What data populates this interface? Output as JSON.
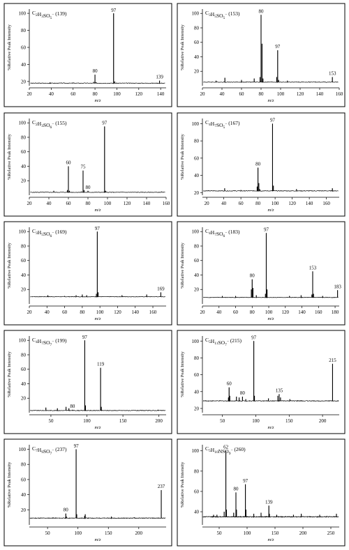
{
  "chart_data": [
    {
      "type": "line",
      "title": "C2H3SO5 (139)",
      "formula": [
        [
          "C",
          ""
        ],
        [
          "2",
          "sub"
        ],
        [
          "H",
          ""
        ],
        [
          "3",
          "sub"
        ],
        [
          "SO",
          ""
        ],
        [
          "5",
          "sub"
        ],
        [
          "−",
          "sup"
        ]
      ],
      "mass": "(139)",
      "ylabel": "%Relative Peak Intensity",
      "xlabel": "m/z",
      "xlim": [
        20,
        145
      ],
      "ylim": [
        15,
        105
      ],
      "xticks": [
        20,
        40,
        60,
        80,
        100,
        120,
        140
      ],
      "yticks": [
        20,
        40,
        60,
        80,
        100
      ],
      "baseline": 18,
      "peaks": [
        [
          39,
          19
        ],
        [
          60,
          18.8
        ],
        [
          79,
          19.5
        ],
        [
          80,
          28
        ],
        [
          81,
          19
        ],
        [
          97,
          100
        ],
        [
          98,
          20
        ],
        [
          139,
          21
        ]
      ],
      "labels": [
        {
          "x": 80,
          "text": "80"
        },
        {
          "x": 97,
          "text": "97"
        },
        {
          "x": 139,
          "text": "139"
        }
      ]
    },
    {
      "type": "line",
      "title": "C3H5SO5 (153)",
      "formula": [
        [
          "C",
          ""
        ],
        [
          "3",
          "sub"
        ],
        [
          "H",
          ""
        ],
        [
          "5",
          "sub"
        ],
        [
          "SO",
          ""
        ],
        [
          "5",
          "sub"
        ],
        [
          "−",
          "sup"
        ]
      ],
      "mass": "(153)",
      "ylabel": "%Relative Peak Intensity",
      "xlabel": "m/z",
      "xlim": [
        20,
        160
      ],
      "ylim": [
        0,
        106
      ],
      "xticks": [
        20,
        40,
        60,
        80,
        100,
        120,
        140,
        160
      ],
      "yticks": [
        20,
        40,
        60,
        80,
        100
      ],
      "baseline": 5,
      "peaks": [
        [
          34,
          7
        ],
        [
          43,
          11
        ],
        [
          60,
          8
        ],
        [
          73,
          10
        ],
        [
          79,
          12
        ],
        [
          80,
          98
        ],
        [
          81,
          58
        ],
        [
          82,
          10
        ],
        [
          96,
          12
        ],
        [
          97,
          49
        ],
        [
          98,
          8
        ],
        [
          107,
          7
        ],
        [
          153,
          12
        ]
      ],
      "labels": [
        {
          "x": 80,
          "text": "80"
        },
        {
          "x": 97,
          "text": "97"
        },
        {
          "x": 153,
          "text": "153"
        }
      ]
    },
    {
      "type": "line",
      "title": "C2H3SO6 (155)",
      "formula": [
        [
          "C",
          ""
        ],
        [
          "2",
          "sub"
        ],
        [
          "H",
          ""
        ],
        [
          "3",
          "sub"
        ],
        [
          "SO",
          ""
        ],
        [
          "6",
          "sub"
        ],
        [
          "−",
          "sup"
        ]
      ],
      "mass": "(155)",
      "ylabel": "%Relative Peak Intensity",
      "xlabel": "m/z",
      "xlim": [
        20,
        160
      ],
      "ylim": [
        0,
        106
      ],
      "xticks": [
        20,
        40,
        60,
        80,
        100,
        120,
        140,
        160
      ],
      "yticks": [
        20,
        40,
        60,
        80,
        100
      ],
      "baseline": 4,
      "peaks": [
        [
          45,
          6
        ],
        [
          59,
          7
        ],
        [
          60,
          40
        ],
        [
          61,
          6
        ],
        [
          73,
          5
        ],
        [
          75,
          34
        ],
        [
          76,
          7
        ],
        [
          80,
          6
        ],
        [
          97,
          95
        ],
        [
          98,
          6
        ],
        [
          155,
          5
        ]
      ],
      "labels": [
        {
          "x": 60,
          "text": "60"
        },
        {
          "x": 75,
          "text": "75"
        },
        {
          "x": 80,
          "text": "80"
        },
        {
          "x": 97,
          "text": "97"
        }
      ]
    },
    {
      "type": "line",
      "title": "C4H7SO5 (167)",
      "formula": [
        [
          "C",
          ""
        ],
        [
          "4",
          "sub"
        ],
        [
          "H",
          ""
        ],
        [
          "7",
          "sub"
        ],
        [
          "SO",
          ""
        ],
        [
          "5",
          "sub"
        ],
        [
          "−",
          "sup"
        ]
      ],
      "mass": "(167)",
      "ylabel": "%Relative Peak Intensity",
      "xlabel": "m/z",
      "xlim": [
        15,
        175
      ],
      "ylim": [
        17,
        106
      ],
      "xticks": [
        20,
        40,
        60,
        80,
        100,
        120,
        140,
        160
      ],
      "yticks": [
        20,
        40,
        60,
        80,
        100
      ],
      "baseline": 22,
      "peaks": [
        [
          41,
          25
        ],
        [
          60,
          23
        ],
        [
          79,
          27
        ],
        [
          80,
          49
        ],
        [
          81,
          31
        ],
        [
          82,
          24
        ],
        [
          97,
          100
        ],
        [
          98,
          28
        ],
        [
          125,
          24
        ],
        [
          167,
          25
        ]
      ],
      "labels": [
        {
          "x": 80,
          "text": "80"
        },
        {
          "x": 97,
          "text": "97"
        }
      ]
    },
    {
      "type": "line",
      "title": "C3H5SO6 (169)",
      "formula": [
        [
          "C",
          ""
        ],
        [
          "3",
          "sub"
        ],
        [
          "H",
          ""
        ],
        [
          "5",
          "sub"
        ],
        [
          "SO",
          ""
        ],
        [
          "6",
          "sub"
        ],
        [
          "−",
          "sup"
        ]
      ],
      "mass": "(169)",
      "ylabel": "%Relative Peak Intensity",
      "xlabel": "m/z",
      "xlim": [
        20,
        175
      ],
      "ylim": [
        0,
        106
      ],
      "xticks": [
        20,
        40,
        60,
        80,
        100,
        120,
        140,
        160
      ],
      "yticks": [
        20,
        40,
        60,
        80,
        100
      ],
      "baseline": 10,
      "peaks": [
        [
          41,
          12
        ],
        [
          60,
          11
        ],
        [
          73,
          12
        ],
        [
          80,
          13
        ],
        [
          85,
          12
        ],
        [
          96,
          14
        ],
        [
          97,
          100
        ],
        [
          98,
          16
        ],
        [
          125,
          12
        ],
        [
          153,
          13
        ],
        [
          169,
          16
        ]
      ],
      "labels": [
        {
          "x": 97,
          "text": "97"
        },
        {
          "x": 169,
          "text": "169"
        }
      ]
    },
    {
      "type": "line",
      "title": "C4H7SO6 (183)",
      "formula": [
        [
          "C",
          ""
        ],
        [
          "4",
          "sub"
        ],
        [
          "H",
          ""
        ],
        [
          "7",
          "sub"
        ],
        [
          "SO",
          ""
        ],
        [
          "6",
          "sub"
        ],
        [
          "−",
          "sup"
        ]
      ],
      "mass": "(183)",
      "ylabel": "%Relative Peak Intensity",
      "xlabel": "m/z",
      "xlim": [
        20,
        185
      ],
      "ylim": [
        0,
        106
      ],
      "xticks": [
        20,
        40,
        60,
        80,
        100,
        120,
        140,
        160,
        180
      ],
      "yticks": [
        20,
        40,
        60,
        80,
        100
      ],
      "baseline": 9,
      "peaks": [
        [
          44,
          11
        ],
        [
          60,
          11
        ],
        [
          79,
          20
        ],
        [
          80,
          34
        ],
        [
          81,
          22
        ],
        [
          85,
          12
        ],
        [
          96,
          14
        ],
        [
          97,
          98
        ],
        [
          98,
          20
        ],
        [
          125,
          11
        ],
        [
          139,
          12
        ],
        [
          152,
          13
        ],
        [
          153,
          45
        ],
        [
          154,
          14
        ],
        [
          165,
          11
        ],
        [
          183,
          19
        ]
      ],
      "labels": [
        {
          "x": 80,
          "text": "80"
        },
        {
          "x": 97,
          "text": "97"
        },
        {
          "x": 153,
          "text": "153"
        },
        {
          "x": 183,
          "text": "183"
        }
      ]
    },
    {
      "type": "line",
      "title": "C4H7SO7 (199)",
      "formula": [
        [
          "C",
          ""
        ],
        [
          "4",
          "sub"
        ],
        [
          "H",
          ""
        ],
        [
          "7",
          "sub"
        ],
        [
          "SO",
          ""
        ],
        [
          "7",
          "sub"
        ],
        [
          "−",
          "sup"
        ]
      ],
      "mass": "(199)",
      "ylabel": "%Relative Peak Intensity",
      "xlabel": "m/z",
      "xlim": [
        20,
        210
      ],
      "ylim": [
        0,
        106
      ],
      "xticks": [
        50,
        100,
        150,
        200
      ],
      "yticks": [
        20,
        40,
        60,
        80,
        100
      ],
      "baseline": 3,
      "peaks": [
        [
          43,
          7
        ],
        [
          59,
          6
        ],
        [
          71,
          8
        ],
        [
          75,
          6
        ],
        [
          80,
          4
        ],
        [
          97,
          100
        ],
        [
          98,
          10
        ],
        [
          119,
          62
        ],
        [
          120,
          8
        ],
        [
          199,
          4
        ]
      ],
      "labels": [
        {
          "x": 97,
          "text": "97"
        },
        {
          "x": 119,
          "text": "119"
        },
        {
          "x": 80,
          "text": "80"
        }
      ]
    },
    {
      "type": "line",
      "title": "C5H11SO7 (215)",
      "formula": [
        [
          "C",
          ""
        ],
        [
          "5",
          "sub"
        ],
        [
          "H",
          ""
        ],
        [
          "11",
          "sub"
        ],
        [
          "SO",
          ""
        ],
        [
          "7",
          "sub"
        ],
        [
          "−",
          "sup"
        ]
      ],
      "mass": "(215)",
      "ylabel": "%Relative Peak Intensity",
      "xlabel": "m/z",
      "xlim": [
        20,
        225
      ],
      "ylim": [
        15,
        106
      ],
      "xticks": [
        50,
        100,
        150,
        200
      ],
      "yticks": [
        20,
        40,
        60,
        80,
        100
      ],
      "baseline": 29,
      "peaks": [
        [
          59,
          33
        ],
        [
          60,
          45
        ],
        [
          61,
          35
        ],
        [
          71,
          34
        ],
        [
          75,
          33
        ],
        [
          80,
          34
        ],
        [
          85,
          31
        ],
        [
          97,
          100
        ],
        [
          98,
          35
        ],
        [
          119,
          32
        ],
        [
          133,
          35
        ],
        [
          135,
          37
        ],
        [
          137,
          33
        ],
        [
          151,
          31
        ],
        [
          215,
          73
        ]
      ],
      "labels": [
        {
          "x": 60,
          "text": "60"
        },
        {
          "x": 80,
          "text": "80"
        },
        {
          "x": 97,
          "text": "97"
        },
        {
          "x": 135,
          "text": "135"
        },
        {
          "x": 215,
          "text": "215"
        }
      ]
    },
    {
      "type": "line",
      "title": "C7H9SO7 (237)",
      "formula": [
        [
          "C",
          ""
        ],
        [
          "7",
          "sub"
        ],
        [
          "H",
          ""
        ],
        [
          "9",
          "sub"
        ],
        [
          "SO",
          ""
        ],
        [
          "7",
          "sub"
        ],
        [
          "−",
          "sup"
        ]
      ],
      "mass": "(237)",
      "ylabel": "%Relative Peak Intensity",
      "xlabel": "m/z",
      "xlim": [
        20,
        245
      ],
      "ylim": [
        0,
        106
      ],
      "xticks": [
        50,
        100,
        150,
        200
      ],
      "yticks": [
        20,
        40,
        60,
        80,
        100
      ],
      "baseline": 9,
      "peaks": [
        [
          59,
          10
        ],
        [
          80,
          15
        ],
        [
          81,
          11
        ],
        [
          97,
          100
        ],
        [
          98,
          14
        ],
        [
          111,
          12
        ],
        [
          112,
          14
        ],
        [
          155,
          11
        ],
        [
          193,
          10
        ],
        [
          237,
          46
        ]
      ],
      "labels": [
        {
          "x": 80,
          "text": "80"
        },
        {
          "x": 97,
          "text": "97"
        },
        {
          "x": 237,
          "text": "237"
        }
      ]
    },
    {
      "type": "line",
      "title": "C5H10NSO9 (260)",
      "formula": [
        [
          "C",
          ""
        ],
        [
          "5",
          "sub"
        ],
        [
          "H",
          ""
        ],
        [
          "10",
          "sub"
        ],
        [
          "NSO",
          ""
        ],
        [
          "9",
          "sub"
        ],
        [
          "−",
          "sup"
        ]
      ],
      "mass": "(260)",
      "ylabel": "%Relative Peak Intensity",
      "xlabel": "m/z",
      "xlim": [
        20,
        265
      ],
      "ylim": [
        27,
        106
      ],
      "xticks": [
        50,
        100,
        150,
        200,
        250
      ],
      "yticks": [
        40,
        60,
        80,
        100
      ],
      "baseline": 35,
      "peaks": [
        [
          40,
          37
        ],
        [
          46,
          37
        ],
        [
          59,
          40
        ],
        [
          62,
          100
        ],
        [
          63,
          42
        ],
        [
          76,
          39
        ],
        [
          80,
          59
        ],
        [
          81,
          42
        ],
        [
          97,
          67
        ],
        [
          98,
          42
        ],
        [
          112,
          38
        ],
        [
          125,
          39
        ],
        [
          139,
          46
        ],
        [
          140,
          38
        ],
        [
          153,
          37
        ],
        [
          183,
          37
        ],
        [
          197,
          38
        ],
        [
          230,
          37
        ],
        [
          260,
          38
        ]
      ],
      "labels": [
        {
          "x": 62,
          "text": "62"
        },
        {
          "x": 80,
          "text": "80"
        },
        {
          "x": 97,
          "text": "97"
        },
        {
          "x": 139,
          "text": "139"
        }
      ]
    }
  ]
}
